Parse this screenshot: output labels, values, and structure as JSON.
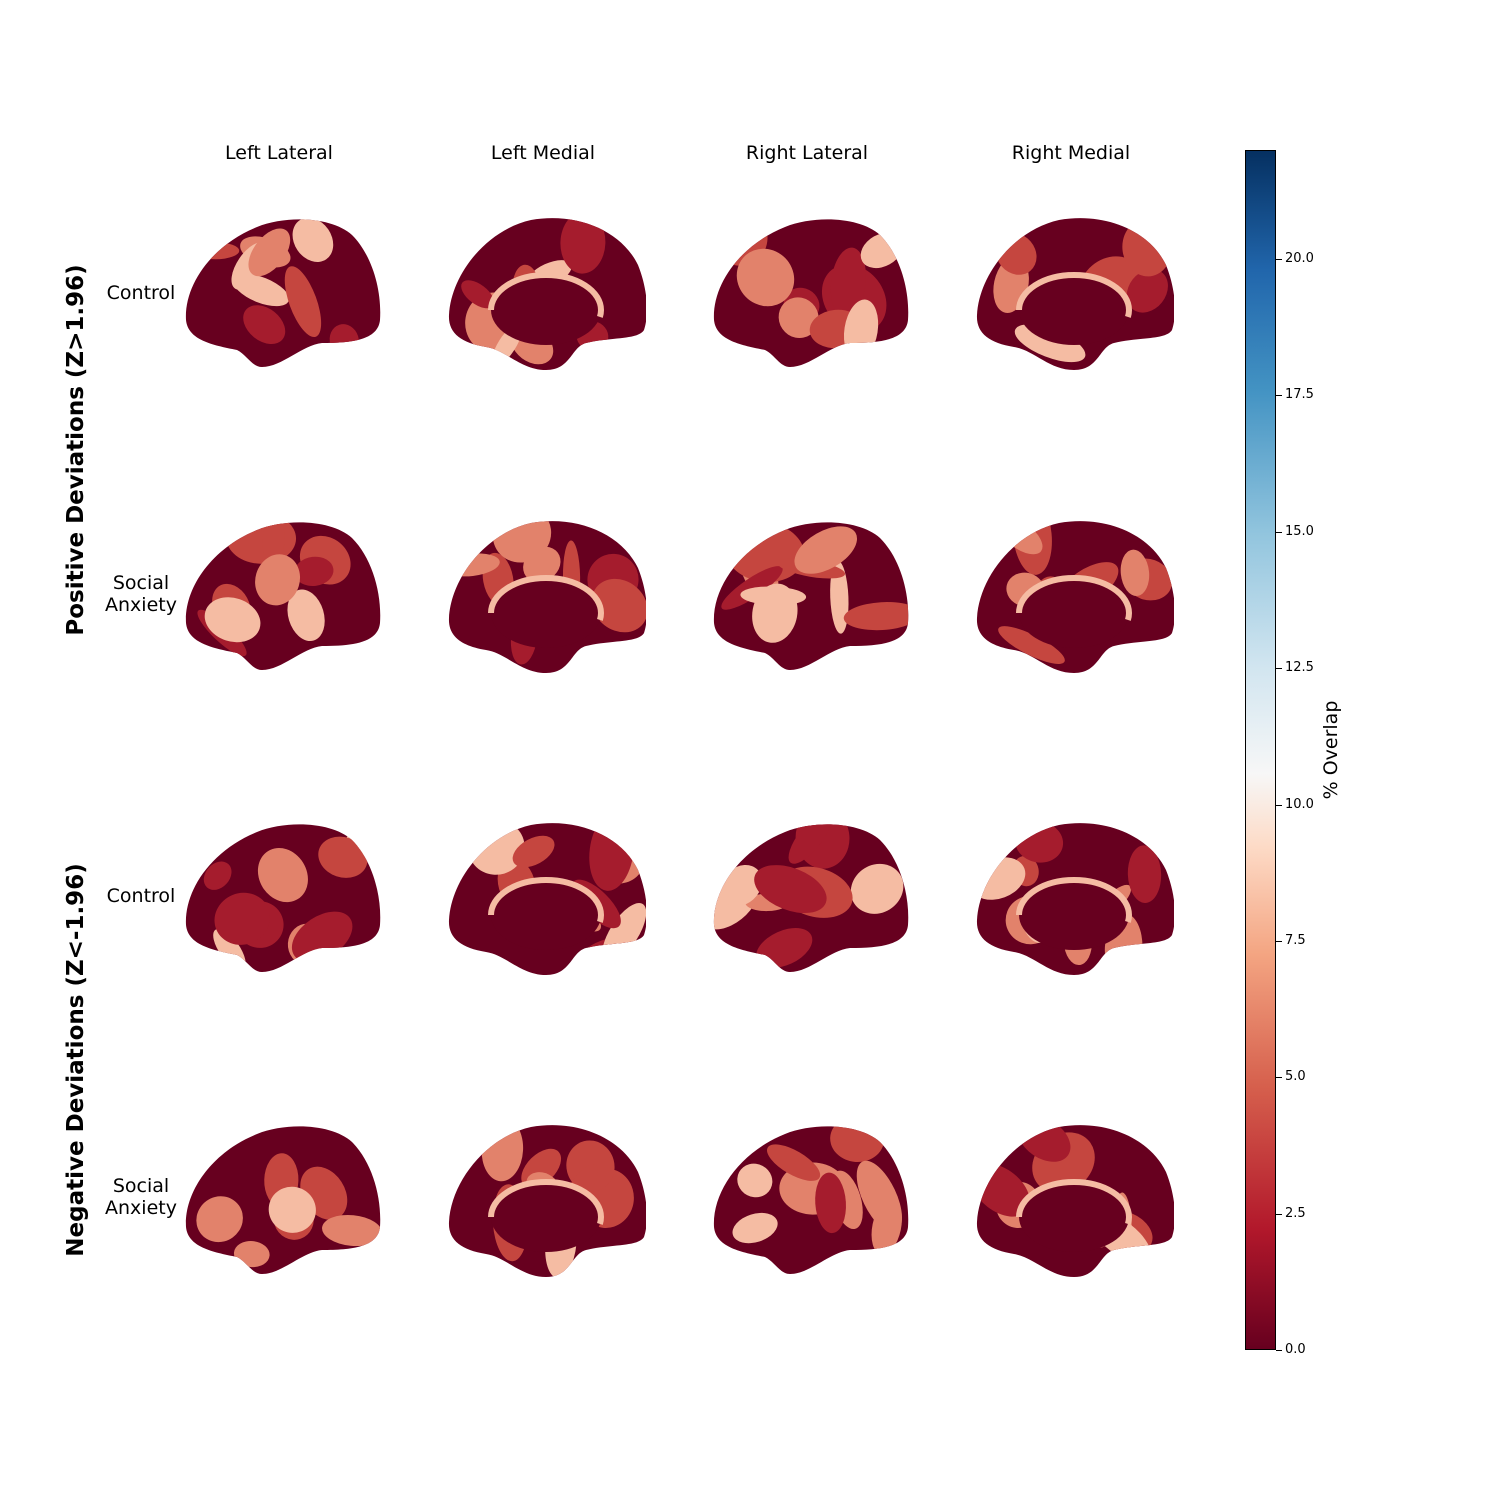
{
  "columns": [
    "Left Lateral",
    "Left Medial",
    "Right Lateral",
    "Right Medial"
  ],
  "groups": [
    {
      "label": "Positive Deviations (Z>1.96)",
      "rows": [
        "Control",
        "Social\nAnxiety"
      ]
    },
    {
      "label": "Negative Deviations (Z<-1.96)",
      "rows": [
        "Control",
        "Social\nAnxiety"
      ]
    }
  ],
  "colorbar": {
    "label": "% Overlap",
    "colormap": "RdBu",
    "min": 0.0,
    "max": 22.0,
    "ticks": [
      "0.0",
      "2.5",
      "5.0",
      "7.5",
      "10.0",
      "12.5",
      "15.0",
      "17.5",
      "20.0"
    ],
    "colors": {
      "low": "#67001f",
      "mid": "#f7f7f7",
      "high": "#053061"
    }
  }
}
